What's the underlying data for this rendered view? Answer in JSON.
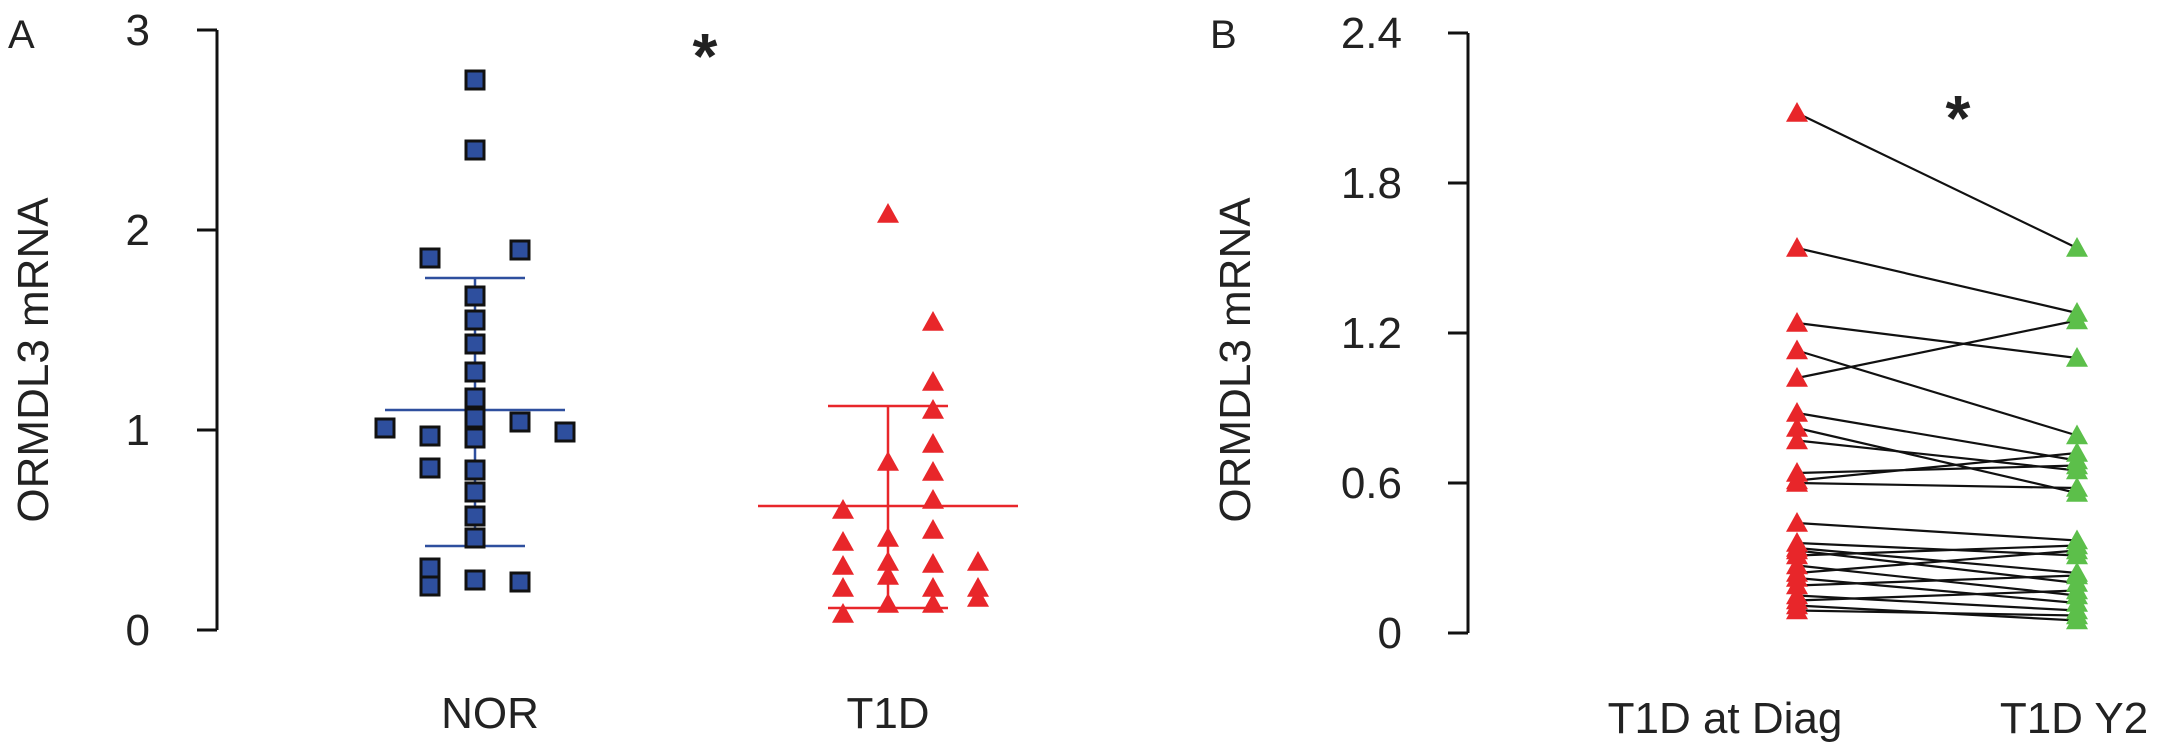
{
  "panels": {
    "A": {
      "label": "A",
      "ylabel": "ORMDL3 mRNA",
      "significance": "*"
    },
    "B": {
      "label": "B",
      "ylabel": "ORMDL3 mRNA",
      "significance": "*"
    }
  },
  "colors": {
    "nor": "#2e4f9e",
    "t1d": "#e8262a",
    "y2": "#5cbf4a",
    "line": "#111111"
  },
  "chart_data": [
    {
      "type": "scatter",
      "panel": "A",
      "ylabel": "ORMDL3 mRNA",
      "ylim": [
        0,
        3
      ],
      "yticks": [
        0,
        1,
        2,
        3
      ],
      "categories": [
        "NOR",
        "T1D"
      ],
      "series": [
        {
          "name": "NOR",
          "marker": "square",
          "color": "#2e4f9e",
          "points": [
            {
              "offset": 0,
              "y": 2.75
            },
            {
              "offset": 0,
              "y": 2.4
            },
            {
              "offset": -1,
              "y": 1.86
            },
            {
              "offset": 1,
              "y": 1.9
            },
            {
              "offset": 0,
              "y": 1.67
            },
            {
              "offset": 0,
              "y": 1.55
            },
            {
              "offset": 0,
              "y": 1.43
            },
            {
              "offset": 0,
              "y": 1.29
            },
            {
              "offset": 0,
              "y": 1.16
            },
            {
              "offset": 0,
              "y": 1.06
            },
            {
              "offset": 0,
              "y": 0.96
            },
            {
              "offset": -2,
              "y": 1.01
            },
            {
              "offset": 2,
              "y": 0.99
            },
            {
              "offset": 1,
              "y": 1.04
            },
            {
              "offset": -1,
              "y": 0.97
            },
            {
              "offset": -1,
              "y": 0.81
            },
            {
              "offset": 0,
              "y": 0.8
            },
            {
              "offset": 0,
              "y": 0.69
            },
            {
              "offset": 0,
              "y": 0.57
            },
            {
              "offset": 0,
              "y": 0.46
            },
            {
              "offset": -1,
              "y": 0.31
            },
            {
              "offset": -1,
              "y": 0.22
            },
            {
              "offset": 0,
              "y": 0.25
            },
            {
              "offset": 1,
              "y": 0.24
            }
          ],
          "mean": 1.1,
          "sd_upper": 1.76,
          "sd_lower": 0.42
        },
        {
          "name": "T1D",
          "marker": "triangle",
          "color": "#e8262a",
          "points": [
            {
              "offset": 0,
              "y": 2.08
            },
            {
              "offset": 1,
              "y": 1.54
            },
            {
              "offset": 1,
              "y": 1.24
            },
            {
              "offset": 1,
              "y": 1.1
            },
            {
              "offset": 1,
              "y": 0.93
            },
            {
              "offset": 0,
              "y": 0.84
            },
            {
              "offset": 1,
              "y": 0.79
            },
            {
              "offset": 1,
              "y": 0.65
            },
            {
              "offset": -1,
              "y": 0.6
            },
            {
              "offset": -1,
              "y": 0.44
            },
            {
              "offset": 0,
              "y": 0.46
            },
            {
              "offset": 1,
              "y": 0.5
            },
            {
              "offset": 0,
              "y": 0.34
            },
            {
              "offset": -1,
              "y": 0.32
            },
            {
              "offset": 1,
              "y": 0.33
            },
            {
              "offset": 2,
              "y": 0.34
            },
            {
              "offset": 0,
              "y": 0.27
            },
            {
              "offset": -1,
              "y": 0.21
            },
            {
              "offset": 1,
              "y": 0.21
            },
            {
              "offset": 2,
              "y": 0.21
            },
            {
              "offset": -1,
              "y": 0.08
            },
            {
              "offset": 0,
              "y": 0.13
            },
            {
              "offset": 1,
              "y": 0.13
            },
            {
              "offset": 2,
              "y": 0.16
            }
          ],
          "mean": 0.62,
          "sd_upper": 1.12,
          "sd_lower": 0.11
        }
      ]
    },
    {
      "type": "line",
      "panel": "B",
      "ylabel": "ORMDL3 mRNA",
      "ylim": [
        0,
        2.4
      ],
      "yticks": [
        0,
        0.6,
        1.2,
        1.8,
        2.4
      ],
      "ytick_labels": [
        "0",
        "0.6",
        "1.2",
        "1.8",
        "2.4"
      ],
      "categories": [
        "T1D at Diag",
        "T1D Y2"
      ],
      "series": [
        {
          "name": "T1D at Diag",
          "marker": "triangle",
          "color": "#e8262a"
        },
        {
          "name": "T1D Y2",
          "marker": "triangle",
          "color": "#5cbf4a"
        }
      ],
      "pairs": [
        [
          2.08,
          1.54
        ],
        [
          1.54,
          1.28
        ],
        [
          1.24,
          1.1
        ],
        [
          1.13,
          0.79
        ],
        [
          1.02,
          1.25
        ],
        [
          0.88,
          0.69
        ],
        [
          0.82,
          0.56
        ],
        [
          0.77,
          0.65
        ],
        [
          0.64,
          0.67
        ],
        [
          0.61,
          0.72
        ],
        [
          0.6,
          0.58
        ],
        [
          0.44,
          0.37
        ],
        [
          0.36,
          0.31
        ],
        [
          0.34,
          0.24
        ],
        [
          0.33,
          0.2
        ],
        [
          0.31,
          0.35
        ],
        [
          0.27,
          0.15
        ],
        [
          0.24,
          0.33
        ],
        [
          0.22,
          0.12
        ],
        [
          0.19,
          0.23
        ],
        [
          0.15,
          0.09
        ],
        [
          0.13,
          0.17
        ],
        [
          0.11,
          0.05
        ],
        [
          0.09,
          0.07
        ]
      ]
    }
  ]
}
